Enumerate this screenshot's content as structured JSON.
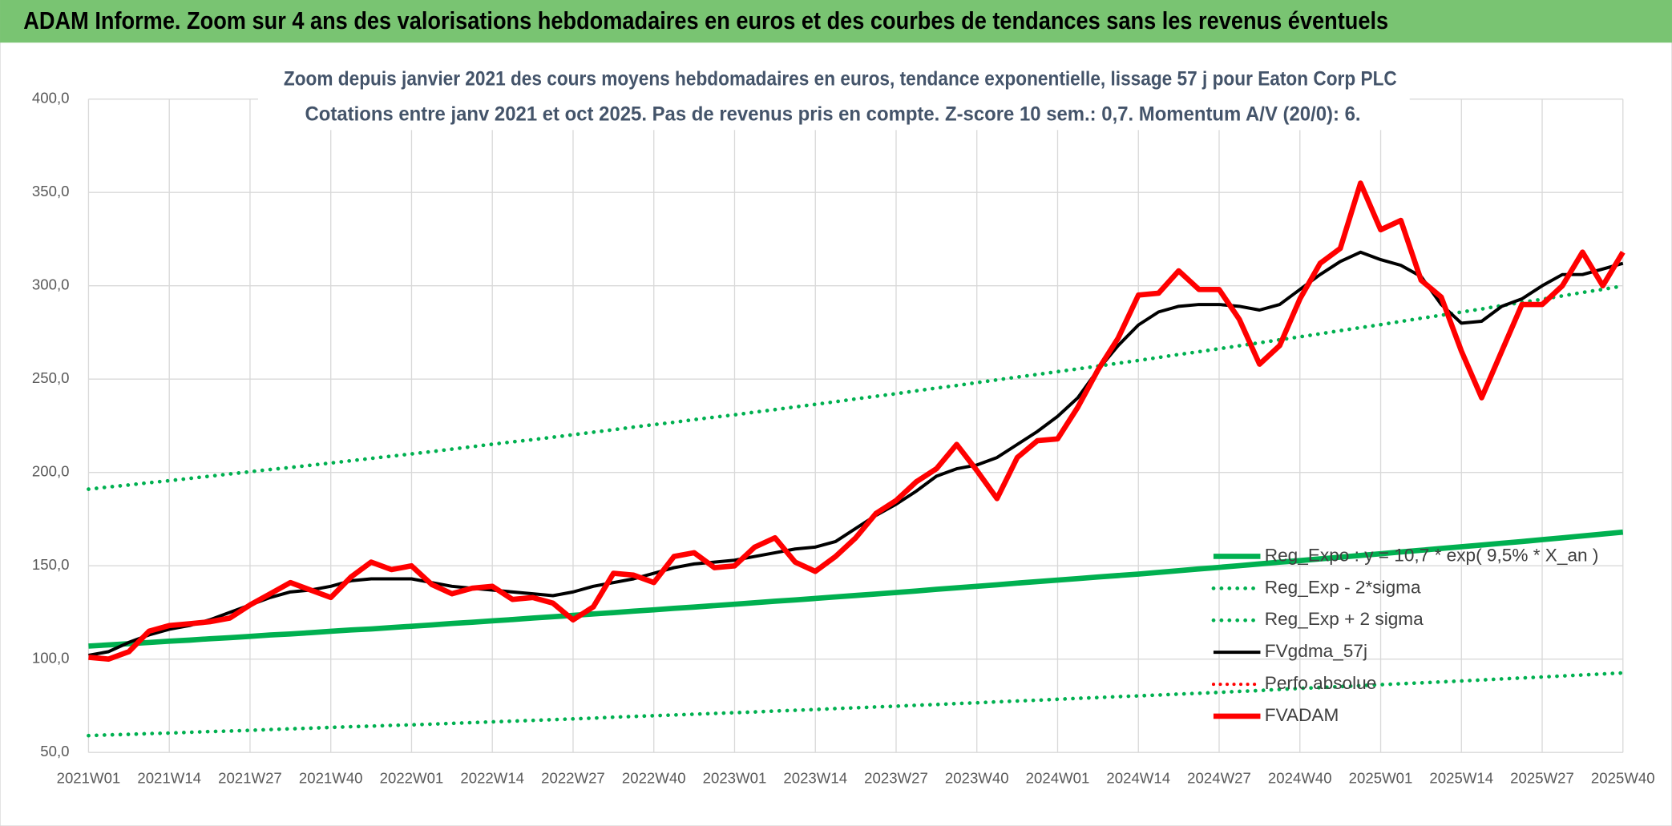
{
  "chart_data": {
    "type": "line",
    "header": "ADAM Informe. Zoom sur 4 ans des valorisations hebdomadaires en euros et des courbes de tendances sans les revenus éventuels",
    "title": "Zoom depuis janvier 2021 des cours moyens hebdomadaires en euros, tendance exponentielle, lissage 57 j pour Eaton Corp PLC",
    "subtitle": "Cotations entre janv 2021 et oct 2025. Pas de revenus pris en compte. Z-score 10 sem.: 0,7. Momentum A/V (20/0): 6.",
    "categories": [
      "2021W01",
      null,
      null,
      null,
      "2021W14",
      null,
      null,
      null,
      "2021W27",
      null,
      null,
      null,
      "2021W40",
      null,
      null,
      null,
      "2022W01",
      null,
      null,
      null,
      "2022W14",
      null,
      null,
      null,
      "2022W27",
      null,
      null,
      null,
      "2022W40",
      null,
      null,
      null,
      "2023W01",
      null,
      null,
      null,
      "2023W14",
      null,
      null,
      null,
      "2023W27",
      null,
      null,
      null,
      "2023W40",
      null,
      null,
      null,
      "2024W01",
      null,
      null,
      null,
      "2024W14",
      null,
      null,
      null,
      "2024W27",
      null,
      null,
      null,
      "2024W40",
      null,
      null,
      null,
      "2025W01",
      null,
      null,
      null,
      "2025W14",
      null,
      null,
      null,
      "2025W27",
      null,
      null,
      null,
      "2025W40"
    ],
    "ylim": [
      50,
      400
    ],
    "yticks": [
      {
        "value": 50,
        "label": "50,0"
      },
      {
        "value": 100,
        "label": "100,0"
      },
      {
        "value": 150,
        "label": "150,0"
      },
      {
        "value": 200,
        "label": "200,0"
      },
      {
        "value": 250,
        "label": "250,0"
      },
      {
        "value": 300,
        "label": "300,0"
      },
      {
        "value": 350,
        "label": "350,0"
      },
      {
        "value": 400,
        "label": "400,0"
      }
    ],
    "grid": true,
    "legend": "lower right",
    "series": [
      {
        "name": "Reg_Expo : y = 10,7 * exp( 9,5% *  X_an )",
        "color": "#00b050",
        "style": "solid",
        "width": 5,
        "values": [
          107.0,
          107.6,
          108.3,
          108.9,
          109.6,
          110.2,
          110.9,
          111.5,
          112.2,
          112.9,
          113.5,
          114.2,
          114.9,
          115.6,
          116.2,
          116.9,
          117.6,
          118.3,
          119.1,
          119.8,
          120.5,
          121.2,
          122.0,
          122.7,
          123.4,
          124.2,
          124.9,
          125.7,
          126.4,
          127.2,
          127.9,
          128.7,
          129.4,
          130.2,
          131.0,
          131.7,
          132.5,
          133.3,
          134.1,
          134.9,
          135.7,
          136.5,
          137.4,
          138.2,
          139.0,
          139.8,
          140.7,
          141.5,
          142.3,
          143.1,
          144.0,
          144.8,
          145.6,
          146.5,
          147.4,
          148.3,
          149.2,
          150.1,
          151.0,
          151.9,
          152.8,
          153.7,
          154.6,
          155.5,
          156.4,
          157.4,
          158.3,
          159.3,
          160.2,
          161.1,
          162.1,
          163.0,
          164.0,
          165.0,
          166.0,
          167.0,
          168.0
        ]
      },
      {
        "name": "Reg_Exp - 2*sigma",
        "color": "#00b050",
        "style": "dotted",
        "width": 3.5,
        "values": [
          59.0,
          59.4,
          59.7,
          60.1,
          60.4,
          60.8,
          61.2,
          61.5,
          61.9,
          62.3,
          62.7,
          63.0,
          63.4,
          63.8,
          64.1,
          64.5,
          64.8,
          65.2,
          65.6,
          66.0,
          66.4,
          66.8,
          67.2,
          67.6,
          68.0,
          68.4,
          68.9,
          69.3,
          69.7,
          70.1,
          70.5,
          70.9,
          71.3,
          71.7,
          72.2,
          72.6,
          73.0,
          73.5,
          73.9,
          74.4,
          74.8,
          75.3,
          75.7,
          76.2,
          76.6,
          77.1,
          77.6,
          78.0,
          78.5,
          79.0,
          79.4,
          79.9,
          80.3,
          80.8,
          81.3,
          81.7,
          82.2,
          82.7,
          83.2,
          83.8,
          84.3,
          84.8,
          85.3,
          85.8,
          86.3,
          86.8,
          87.3,
          87.8,
          88.3,
          88.8,
          89.4,
          89.9,
          90.4,
          91.0,
          91.5,
          92.1,
          92.6
        ]
      },
      {
        "name": "Reg_Exp + 2 sigma",
        "color": "#00b050",
        "style": "dotted",
        "width": 3.5,
        "values": [
          191.0,
          192.2,
          193.3,
          194.5,
          195.6,
          196.8,
          198.0,
          199.2,
          200.4,
          201.6,
          202.7,
          203.9,
          205.1,
          206.3,
          207.5,
          208.7,
          209.9,
          211.2,
          212.5,
          213.8,
          215.1,
          216.4,
          217.6,
          218.9,
          220.2,
          221.6,
          222.9,
          224.3,
          225.6,
          226.9,
          228.3,
          229.6,
          230.9,
          232.3,
          233.7,
          235.1,
          236.5,
          237.9,
          239.4,
          240.8,
          242.2,
          243.7,
          245.2,
          246.6,
          248.1,
          249.6,
          251.1,
          252.5,
          254.0,
          255.5,
          257.0,
          258.5,
          260.0,
          261.6,
          263.2,
          264.7,
          266.3,
          267.9,
          269.5,
          271.1,
          272.7,
          274.3,
          276.0,
          277.6,
          279.2,
          280.9,
          282.6,
          284.2,
          285.9,
          287.6,
          289.4,
          291.1,
          292.8,
          294.6,
          296.4,
          298.1,
          299.9
        ]
      },
      {
        "name": "FVgdma_57j",
        "color": "#000000",
        "style": "solid",
        "width": 3,
        "values": [
          102,
          104,
          109,
          113,
          116,
          118,
          121,
          125,
          129,
          133,
          136,
          137,
          139,
          142,
          143,
          143,
          143,
          141,
          139,
          138,
          137,
          136,
          135,
          134,
          136,
          139,
          141,
          143,
          146,
          149,
          151,
          152,
          153,
          155,
          157,
          159,
          160,
          163,
          170,
          177,
          183,
          190,
          198,
          202,
          204,
          208,
          215,
          222,
          230,
          240,
          255,
          268,
          279,
          286,
          289,
          290,
          290,
          289,
          287,
          290,
          298,
          306,
          313,
          318,
          314,
          311,
          305,
          290,
          280,
          281,
          289,
          293,
          300,
          306,
          306,
          309,
          312
        ]
      },
      {
        "name": "Perfo absolue",
        "color": "#ff0000",
        "style": "dotted",
        "width": 3,
        "values": [
          null,
          null,
          null,
          null,
          null,
          null,
          null,
          null,
          null,
          null,
          null,
          null,
          null,
          null,
          null,
          null,
          null,
          null,
          null,
          null,
          null,
          null,
          null,
          null,
          null,
          null,
          null,
          null,
          null,
          null,
          null,
          null,
          null,
          null,
          null,
          null,
          null,
          null,
          null,
          null,
          null,
          null,
          null,
          null,
          null,
          null,
          null,
          null,
          null,
          null,
          null,
          null,
          null,
          null,
          null,
          null,
          null,
          null,
          null,
          null,
          null,
          null,
          null,
          null,
          null,
          null,
          null,
          null,
          null,
          null,
          null,
          null,
          null,
          null,
          null,
          null,
          null
        ]
      },
      {
        "name": "FVADAM",
        "color": "#ff0000",
        "style": "solid",
        "width": 5,
        "values": [
          101,
          100,
          104,
          115,
          118,
          119,
          120,
          122,
          129,
          135,
          141,
          137,
          133,
          144,
          152,
          148,
          150,
          140,
          135,
          138,
          139,
          132,
          133,
          130,
          121,
          128,
          146,
          145,
          141,
          155,
          157,
          149,
          150,
          160,
          165,
          152,
          147,
          155,
          165,
          178,
          185,
          195,
          202,
          215,
          201,
          186,
          208,
          217,
          218,
          235,
          255,
          272,
          295,
          296,
          308,
          298,
          298,
          282,
          258,
          268,
          293,
          312,
          320,
          355,
          330,
          335,
          303,
          294,
          265,
          240,
          265,
          290,
          290,
          300,
          318,
          300,
          318
        ]
      }
    ]
  }
}
